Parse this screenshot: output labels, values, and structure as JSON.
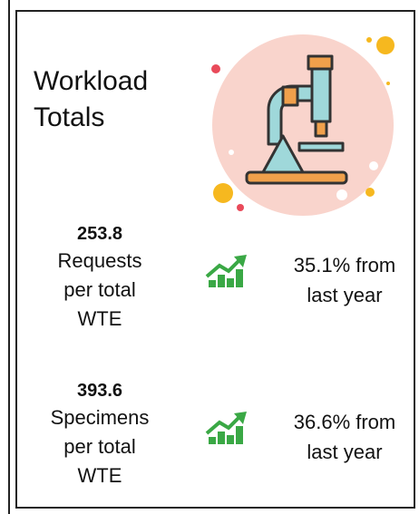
{
  "title_lines": [
    "Workload",
    "Totals"
  ],
  "metrics": [
    {
      "value": "253.8",
      "label_lines": [
        "Requests",
        "per total",
        "WTE"
      ],
      "change_lines": [
        "35.1% from",
        "last year"
      ]
    },
    {
      "value": "393.6",
      "label_lines": [
        "Specimens",
        "per total",
        "WTE"
      ],
      "change_lines": [
        "36.6% from",
        "last year"
      ]
    }
  ]
}
